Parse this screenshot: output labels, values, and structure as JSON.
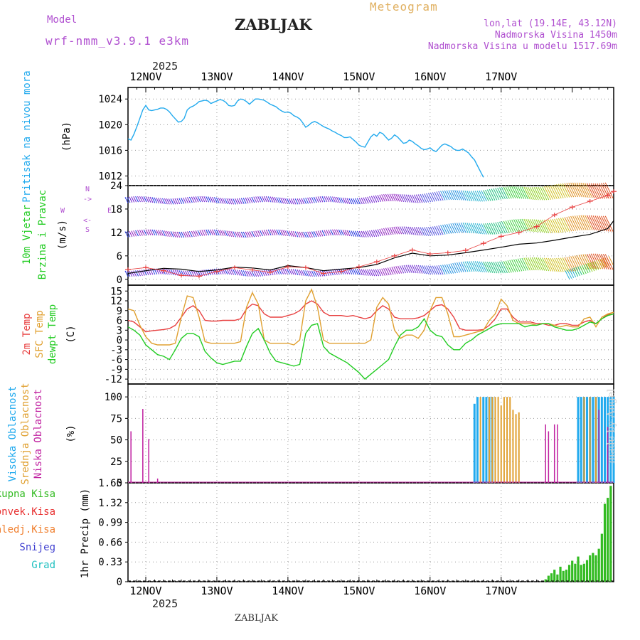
{
  "header": {
    "model_label": "Model",
    "model_name": "wrf-nmm_v3.9.1 e3km",
    "station": "ZABLJAK",
    "title": "Meteogram",
    "coords": "lon,lat (19.14E, 43.12N)",
    "elevation": "Nadmorska Visina 1450m",
    "model_elevation": "Nadmorska Visina u modelu 1517.69m",
    "year_top": "2025",
    "year_bottom": "2025",
    "footer": "ZABLJAK",
    "made_by": "made by Angel"
  },
  "colors": {
    "pressure": "#22aaee",
    "temp2m": "#e84040",
    "sfc_temp": "#e0a030",
    "dewpt": "#22cc22",
    "high_cloud": "#22aaee",
    "mid_cloud": "#e0a030",
    "low_cloud": "#c020a0",
    "total_precip": "#33bb22",
    "conv_precip": "#e83030",
    "frz_precip": "#f08030",
    "snow": "#4040d0",
    "hail": "#20c0c0"
  },
  "chart_data": [
    {
      "type": "line",
      "panel": "pressure",
      "ylabel_main": "Pritisak na nivou mora",
      "ylabel_unit": "(hPa)",
      "x_hours_from_0000_12nov": [
        -6,
        -5,
        -4,
        -3,
        -2,
        -1,
        0,
        1,
        2,
        3,
        4,
        5,
        6,
        7,
        8,
        9,
        10,
        11,
        12,
        13,
        14,
        15,
        16,
        17,
        18,
        19,
        20,
        21,
        22,
        23,
        24,
        25,
        26,
        27,
        28,
        29,
        30,
        31,
        32,
        33,
        34,
        35,
        36,
        37,
        38,
        39,
        40,
        41,
        42,
        43,
        44,
        45,
        46,
        47,
        48,
        49,
        50,
        51,
        52,
        53,
        54,
        55,
        56,
        57,
        58,
        59,
        60,
        61,
        62,
        63,
        64,
        65,
        66,
        67,
        68,
        69,
        70,
        71,
        72,
        73,
        74,
        75,
        76,
        77,
        78,
        79,
        80,
        81,
        82,
        83,
        84,
        85,
        86,
        87,
        88,
        89,
        90,
        91,
        92,
        93,
        94,
        95,
        96,
        97,
        98,
        99,
        100,
        101,
        102,
        103,
        104,
        105,
        106,
        107,
        108,
        109,
        110,
        111,
        112,
        113,
        114,
        115,
        116,
        117,
        118,
        119,
        120,
        121,
        122,
        123,
        124,
        125,
        126,
        127,
        128,
        129,
        130,
        131,
        132,
        133,
        134,
        135,
        136,
        137,
        138,
        139,
        140,
        141,
        142,
        143,
        144,
        145,
        146,
        147,
        148,
        149,
        150,
        151,
        152,
        153,
        154,
        155,
        156,
        157,
        158
      ],
      "values": [
        1017.8,
        1017.6,
        1018.5,
        1019.7,
        1021.0,
        1022.3,
        1023.0,
        1022.3,
        1022.2,
        1022.3,
        1022.4,
        1022.6,
        1022.6,
        1022.4,
        1022.0,
        1021.4,
        1020.9,
        1020.4,
        1020.5,
        1021.0,
        1022.3,
        1022.7,
        1022.9,
        1023.2,
        1023.6,
        1023.7,
        1023.8,
        1023.7,
        1023.3,
        1023.5,
        1023.7,
        1023.9,
        1023.8,
        1023.5,
        1023.0,
        1022.9,
        1023.0,
        1023.7,
        1024.0,
        1023.9,
        1023.6,
        1023.2,
        1023.6,
        1024.0,
        1024.0,
        1023.9,
        1023.8,
        1023.5,
        1023.2,
        1023.0,
        1022.8,
        1022.4,
        1022.1,
        1021.9,
        1022.0,
        1021.8,
        1021.4,
        1021.2,
        1020.9,
        1020.3,
        1019.6,
        1019.9,
        1020.3,
        1020.5,
        1020.3,
        1020.0,
        1019.7,
        1019.5,
        1019.3,
        1019.0,
        1018.8,
        1018.5,
        1018.3,
        1018.0,
        1018.0,
        1018.1,
        1017.7,
        1017.3,
        1016.8,
        1016.6,
        1016.5,
        1017.3,
        1018.1,
        1018.5,
        1018.2,
        1018.8,
        1018.6,
        1018.1,
        1017.6,
        1017.9,
        1018.4,
        1018.1,
        1017.6,
        1017.1,
        1017.2,
        1017.6,
        1017.4,
        1017.0,
        1016.7,
        1016.3,
        1016.1,
        1016.2,
        1016.4,
        1016.0,
        1015.8,
        1016.3,
        1016.8,
        1017.0,
        1016.8,
        1016.6,
        1016.2,
        1016.0,
        1016.0,
        1016.2,
        1015.9,
        1015.6,
        1015.0,
        1014.5,
        1013.6,
        1012.7,
        1011.8
      ],
      "yticks": [
        1012,
        1016,
        1020,
        1024
      ],
      "ylim": [
        1010.5,
        1025.8
      ]
    },
    {
      "type": "line",
      "panel": "wind",
      "ylabel_main": "10m Vjetar",
      "ylabel_sub": "Brzina i Pravac",
      "ylabel_unit": "(m/s)",
      "dir_legend": [
        "N",
        "->",
        "E",
        "<-",
        "W",
        "S"
      ],
      "x_hours_from_0000_12nov": [
        -6,
        0,
        6,
        12,
        18,
        24,
        30,
        36,
        42,
        48,
        54,
        60,
        66,
        72,
        78,
        84,
        90,
        96,
        102,
        108,
        114,
        120,
        126,
        132,
        138,
        144,
        150,
        156,
        158
      ],
      "speed_values": [
        1.5,
        2.2,
        2.8,
        2.6,
        2.0,
        2.4,
        3.1,
        2.9,
        2.4,
        3.5,
        3.0,
        2.2,
        2.6,
        3.0,
        3.8,
        5.5,
        6.7,
        6.0,
        6.2,
        6.8,
        7.5,
        8.2,
        9.0,
        9.3,
        10.0,
        10.8,
        11.5,
        13.0,
        15.0
      ],
      "gust_values": [
        2.5,
        3.0,
        2.2,
        1.0,
        0.8,
        2.0,
        3.0,
        2.4,
        1.8,
        3.2,
        3.0,
        1.5,
        2.0,
        3.2,
        4.5,
        6.0,
        7.5,
        6.5,
        6.8,
        7.4,
        9.2,
        11.0,
        12.0,
        13.5,
        16.5,
        18.5,
        20.0,
        21.5,
        22.5
      ],
      "yticks": [
        0,
        6,
        12,
        18,
        24
      ],
      "ylim": [
        -1.5,
        24
      ]
    },
    {
      "type": "line",
      "panel": "temperature",
      "ylabel_series": [
        "2m Temp",
        "SFC Temp",
        "dewpt Temp"
      ],
      "ylabel_unit": "(C)",
      "x_hours_from_0000_12nov": [
        -6,
        -4,
        -2,
        0,
        2,
        4,
        6,
        8,
        10,
        12,
        14,
        16,
        18,
        20,
        22,
        24,
        26,
        28,
        30,
        32,
        34,
        36,
        38,
        40,
        42,
        44,
        46,
        48,
        50,
        52,
        54,
        56,
        58,
        60,
        62,
        64,
        66,
        68,
        70,
        72,
        74,
        76,
        78,
        80,
        82,
        84,
        86,
        88,
        90,
        92,
        94,
        96,
        98,
        100,
        102,
        104,
        106,
        108,
        110,
        112,
        114,
        116,
        118,
        120,
        122,
        124,
        126,
        128,
        130,
        132,
        134,
        136,
        138,
        140,
        142,
        144,
        146,
        148,
        150,
        152,
        154,
        156,
        158
      ],
      "series": [
        {
          "name": "2m Temp",
          "values": [
            6.0,
            5.5,
            4.0,
            2.5,
            2.8,
            3.0,
            3.2,
            3.5,
            4.5,
            7.0,
            9.5,
            10.5,
            9.0,
            6.0,
            5.8,
            5.8,
            6.0,
            6.0,
            6.0,
            6.5,
            9.5,
            11.0,
            10.5,
            8.0,
            7.0,
            7.0,
            7.0,
            7.5,
            8.0,
            9.0,
            11.0,
            12.0,
            11.0,
            8.5,
            7.5,
            7.5,
            7.5,
            7.2,
            7.5,
            7.0,
            6.5,
            7.0,
            9.0,
            10.5,
            9.5,
            7.0,
            6.5,
            6.5,
            6.5,
            6.8,
            7.5,
            9.0,
            10.5,
            10.8,
            9.5,
            7.0,
            3.5,
            3.0,
            3.0,
            3.0,
            3.2,
            4.5,
            6.5,
            9.5,
            9.5,
            7.0,
            5.5,
            5.5,
            5.5,
            5.0,
            5.0,
            4.5,
            4.5,
            5.0,
            5.0,
            4.5,
            4.5,
            5.5,
            6.0,
            5.0,
            6.5,
            7.8,
            8.0
          ]
        },
        {
          "name": "SFC Temp",
          "values": [
            9.5,
            9.0,
            4.5,
            1.0,
            -1.0,
            -1.5,
            -1.5,
            -1.5,
            -1.0,
            7.0,
            13.5,
            13.0,
            7.0,
            -0.5,
            -1.0,
            -1.0,
            -1.0,
            -1.0,
            -1.0,
            -0.5,
            10.0,
            14.5,
            11.0,
            0.0,
            -1.0,
            -1.0,
            -1.0,
            -1.0,
            -1.5,
            0.0,
            12.0,
            15.5,
            10.0,
            0.0,
            -1.0,
            -1.0,
            -1.0,
            -1.0,
            -1.0,
            -1.0,
            -1.0,
            0.0,
            10.0,
            13.0,
            11.0,
            3.0,
            0.5,
            1.5,
            1.5,
            0.5,
            3.0,
            9.0,
            13.0,
            13.0,
            8.0,
            1.0,
            1.0,
            1.5,
            2.0,
            2.5,
            3.0,
            6.0,
            8.0,
            12.5,
            10.5,
            6.0,
            5.0,
            5.0,
            5.0,
            4.5,
            5.0,
            5.0,
            4.5,
            4.0,
            4.5,
            4.0,
            4.0,
            6.5,
            7.0,
            4.0,
            7.0,
            8.0,
            8.5
          ]
        },
        {
          "name": "dewpt Temp",
          "values": [
            4.0,
            3.0,
            1.5,
            -1.5,
            -3.0,
            -4.5,
            -5.0,
            -6.0,
            -3.0,
            0.5,
            2.0,
            2.0,
            1.0,
            -3.5,
            -5.5,
            -7.0,
            -7.5,
            -7.0,
            -6.5,
            -6.5,
            -2.0,
            2.0,
            3.5,
            0.0,
            -4.0,
            -6.5,
            -7.0,
            -7.5,
            -8.0,
            -7.5,
            2.0,
            4.5,
            5.0,
            -2.0,
            -4.0,
            -5.0,
            -6.0,
            -7.0,
            -8.5,
            -10.0,
            -12.0,
            -10.5,
            -9.0,
            -7.5,
            -6.0,
            -2.0,
            1.5,
            3.0,
            3.0,
            4.0,
            6.5,
            3.0,
            1.5,
            1.0,
            -1.5,
            -3.0,
            -3.0,
            -1.0,
            0.0,
            1.5,
            2.5,
            3.5,
            4.5,
            5.0,
            5.0,
            5.0,
            5.0,
            4.0,
            4.5,
            4.5,
            5.0,
            5.0,
            4.0,
            3.5,
            3.0,
            3.0,
            3.5,
            4.5,
            5.5,
            5.0,
            6.5,
            7.5,
            8.0
          ]
        }
      ],
      "yticks": [
        -12,
        -9,
        -6,
        -3,
        0,
        3,
        6,
        9,
        12,
        15
      ],
      "ylim": [
        -13.5,
        16.8
      ]
    },
    {
      "type": "bar",
      "panel": "cloud",
      "ylabel_series": [
        "Visoka Oblacnost",
        "Srednja Oblacnost",
        "Niska Oblacnost"
      ],
      "ylabel_unit": "(%)",
      "series": [
        {
          "name": "Visoka Oblacnost",
          "x": [
            111,
            112,
            114,
            115,
            116,
            117,
            146,
            147,
            148,
            149,
            150,
            151,
            152,
            153,
            154,
            155,
            156,
            157,
            158
          ],
          "values": [
            92,
            100,
            100,
            100,
            100,
            100,
            100,
            100,
            100,
            100,
            100,
            100,
            100,
            100,
            100,
            100,
            100,
            100,
            100
          ]
        },
        {
          "name": "Srednja Oblacnost",
          "x": [
            113,
            116,
            117,
            118,
            119,
            120,
            121,
            122,
            123,
            124,
            125,
            126,
            127,
            148,
            150,
            152
          ],
          "values": [
            100,
            100,
            100,
            100,
            100,
            90,
            100,
            100,
            100,
            85,
            80,
            82,
            0,
            100,
            100,
            100
          ]
        },
        {
          "name": "Niska Oblacnost",
          "x": [
            -5,
            -2,
            -1,
            1,
            4,
            5,
            116,
            135,
            136,
            137,
            138,
            139,
            140,
            153,
            156
          ],
          "values": [
            60,
            0,
            86,
            51,
            5,
            0,
            0,
            68,
            60,
            0,
            68,
            68,
            0,
            85,
            65
          ]
        }
      ],
      "yticks": [
        0,
        25,
        50,
        75,
        100
      ],
      "ylim": [
        0,
        115
      ]
    },
    {
      "type": "bar",
      "panel": "precipitation",
      "ylabel_unit": "1hr Precip (mm)",
      "legend": [
        "Ukupna Kisa",
        "Konvek.Kisa",
        "Zaledj.Kisa",
        "Snijeg",
        "Grad"
      ],
      "series": [
        {
          "name": "Ukupna Kisa",
          "x": [
            135,
            136,
            137,
            138,
            139,
            140,
            141,
            142,
            143,
            144,
            145,
            146,
            147,
            148,
            149,
            150,
            151,
            152,
            153,
            154,
            155,
            156,
            157
          ],
          "values": [
            0.04,
            0.1,
            0.14,
            0.2,
            0.12,
            0.25,
            0.18,
            0.2,
            0.28,
            0.35,
            0.3,
            0.42,
            0.28,
            0.3,
            0.36,
            0.44,
            0.48,
            0.44,
            0.55,
            0.8,
            1.3,
            1.4,
            1.6
          ]
        }
      ],
      "yticks": [
        0,
        0.33,
        0.66,
        0.99,
        1.32,
        1.65
      ],
      "ylim": [
        0,
        1.65
      ]
    }
  ],
  "x_axis": {
    "day_labels": [
      "12NOV",
      "13NOV",
      "14NOV",
      "15NOV",
      "16NOV",
      "17NOV"
    ]
  }
}
